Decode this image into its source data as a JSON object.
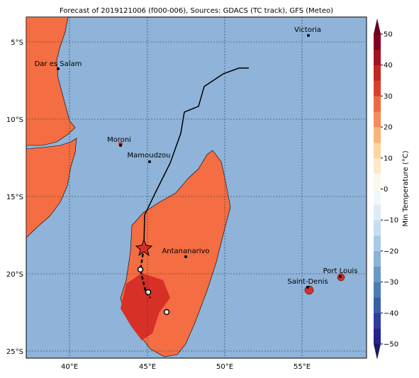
{
  "title": "Forecast of 2019121006 (f000-006), Sources: GDACS (TC track), GFS (Meteo)",
  "lat_ticks": [
    "5°S",
    "10°S",
    "15°S",
    "20°S",
    "25°S"
  ],
  "lon_ticks": [
    "40°E",
    "45°E",
    "50°E",
    "55°E"
  ],
  "places": [
    "Victoria",
    "Dar es Salam",
    "Moroni",
    "Mamoudzou",
    "Antananarivo",
    "Saint-Denis",
    "Port Louis"
  ],
  "colorbar": {
    "label": "Min Temperature (°C)",
    "ticks": [
      "50",
      "40",
      "30",
      "20",
      "10",
      "0",
      "−10",
      "−20",
      "−30",
      "−40",
      "−50"
    ],
    "colors": [
      "#23238e",
      "#2c3d9c",
      "#3a5fa8",
      "#4a7cb5",
      "#6a98c6",
      "#8ab3d6",
      "#a7cbe3",
      "#c4dfee",
      "#deedf5",
      "#f2f8fa",
      "#fdf8ee",
      "#fde9c8",
      "#fcd49d",
      "#f8b47a",
      "#f48b5a",
      "#ec6a42",
      "#d8402c",
      "#c22523",
      "#a30f25",
      "#80001f"
    ]
  }
}
